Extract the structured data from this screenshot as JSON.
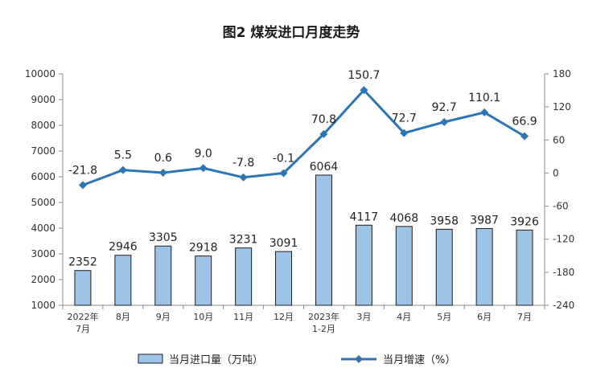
{
  "chart_data": {
    "type": "bar+line",
    "title": "图2  煤炭进口月度走势",
    "categories": [
      [
        "2022年",
        "7月"
      ],
      [
        "8月"
      ],
      [
        "9月"
      ],
      [
        "10月"
      ],
      [
        "11月"
      ],
      [
        "12月"
      ],
      [
        "2023年",
        "1-2月"
      ],
      [
        "3月"
      ],
      [
        "4月"
      ],
      [
        "5月"
      ],
      [
        "6月"
      ],
      [
        "7月"
      ]
    ],
    "series": [
      {
        "name": "当月进口量（万吨）",
        "type": "bar",
        "axis": "left",
        "color": "#9dc3e6",
        "values": [
          2352,
          2946,
          3305,
          2918,
          3231,
          3091,
          6064,
          4117,
          4068,
          3958,
          3987,
          3926
        ],
        "labels": [
          "2352",
          "2946",
          "3305",
          "2918",
          "3231",
          "3091",
          "6064",
          "4117",
          "4068",
          "3958",
          "3987",
          "3926"
        ]
      },
      {
        "name": "当月增速（%）",
        "type": "line",
        "axis": "right",
        "color": "#2e75b6",
        "values": [
          -21.8,
          5.5,
          0.6,
          9.0,
          -7.8,
          -0.1,
          70.8,
          150.7,
          72.7,
          92.7,
          110.1,
          66.9
        ],
        "labels": [
          "-21.8",
          "5.5",
          "0.6",
          "9.0",
          "-7.8",
          "-0.1",
          "70.8",
          "150.7",
          "72.7",
          "92.7",
          "110.1",
          "66.9"
        ]
      }
    ],
    "left_axis": {
      "ylim": [
        1000,
        10000
      ],
      "ticks": [
        1000,
        2000,
        3000,
        4000,
        5000,
        6000,
        7000,
        8000,
        9000,
        10000
      ],
      "tick_labels": [
        "1000",
        "2000",
        "3000",
        "4000",
        "5000",
        "6000",
        "7000",
        "8000",
        "9000",
        "10000"
      ]
    },
    "right_axis": {
      "ylim": [
        -240,
        180
      ],
      "ticks": [
        -240,
        -180,
        -120,
        -60,
        0,
        60,
        120,
        180
      ],
      "tick_labels": [
        "-240",
        "-180",
        "-120",
        "-60",
        "0",
        "60",
        "120",
        "180"
      ]
    },
    "grid": false,
    "legend_position": "bottom"
  }
}
